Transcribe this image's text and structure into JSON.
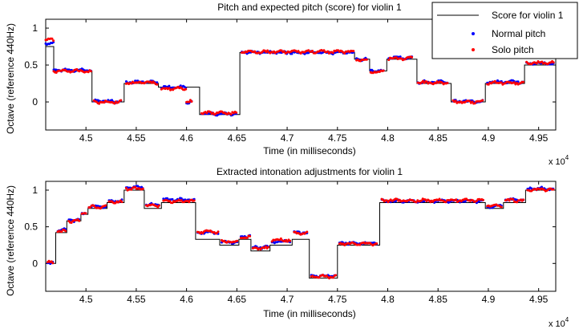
{
  "colors": {
    "score": "#000000",
    "normal": "#0000ff",
    "solo": "#ff0000",
    "axes": "#000000"
  },
  "chart_data": [
    {
      "type": "line",
      "title": "Pitch and expected pitch (score) for violin 1",
      "xlabel": "Time (in milliseconds)",
      "ylabel": "Octave (reference 440Hz)",
      "x_multiplier": "x 10^4",
      "x_multiplier_base": "x 10",
      "x_multiplier_exp": "4",
      "xlim": [
        4.46,
        4.967
      ],
      "ylim": [
        -0.38,
        1.12
      ],
      "xticks": [
        4.5,
        4.55,
        4.6,
        4.65,
        4.7,
        4.75,
        4.8,
        4.85,
        4.9,
        4.95
      ],
      "xtick_labels": [
        "4.5",
        "4.55",
        "4.6",
        "4.65",
        "4.7",
        "4.75",
        "4.8",
        "4.85",
        "4.9",
        "4.95"
      ],
      "yticks": [
        0,
        0.5,
        1
      ],
      "ytick_labels": [
        "0",
        "0.5",
        "1"
      ],
      "legend": {
        "placement": "top-right",
        "entries": [
          "Score for violin 1",
          "Normal pitch",
          "Solo pitch"
        ]
      },
      "series": [
        {
          "name": "Score for violin 1",
          "kind": "step",
          "segments": [
            [
              4.46,
              4.468,
              0.75
            ],
            [
              4.468,
              4.506,
              0.42
            ],
            [
              4.506,
              4.538,
              0.0
            ],
            [
              4.538,
              4.572,
              0.25
            ],
            [
              4.572,
              4.613,
              0.2
            ],
            [
              4.613,
              4.653,
              -0.17
            ],
            [
              4.653,
              4.767,
              0.67
            ],
            [
              4.767,
              4.782,
              0.58
            ],
            [
              4.782,
              4.799,
              0.42
            ],
            [
              4.799,
              4.829,
              0.58
            ],
            [
              4.829,
              4.863,
              0.25
            ],
            [
              4.863,
              4.897,
              0.0
            ],
            [
              4.897,
              4.936,
              0.25
            ],
            [
              4.936,
              4.965,
              0.5
            ]
          ]
        },
        {
          "name": "Normal pitch",
          "kind": "points",
          "segments": [
            [
              4.46,
              4.468,
              0.79
            ],
            [
              4.468,
              4.505,
              0.43
            ],
            [
              4.508,
              4.536,
              0.01
            ],
            [
              4.54,
              4.571,
              0.27
            ],
            [
              4.575,
              4.6,
              0.2
            ],
            [
              4.6,
              4.606,
              0.0
            ],
            [
              4.615,
              4.65,
              -0.16
            ],
            [
              4.655,
              4.766,
              0.67
            ],
            [
              4.769,
              4.78,
              0.58
            ],
            [
              4.783,
              4.797,
              0.42
            ],
            [
              4.801,
              4.825,
              0.6
            ],
            [
              4.83,
              4.86,
              0.27
            ],
            [
              4.865,
              4.895,
              0.01
            ],
            [
              4.899,
              4.935,
              0.27
            ],
            [
              4.938,
              4.965,
              0.52
            ]
          ]
        },
        {
          "name": "Solo pitch",
          "kind": "points",
          "segments": [
            [
              4.46,
              4.468,
              0.84
            ],
            [
              4.468,
              4.505,
              0.42
            ],
            [
              4.508,
              4.536,
              0.0
            ],
            [
              4.54,
              4.571,
              0.26
            ],
            [
              4.575,
              4.6,
              0.18
            ],
            [
              4.6,
              4.606,
              0.01
            ],
            [
              4.615,
              4.65,
              -0.15
            ],
            [
              4.655,
              4.766,
              0.68
            ],
            [
              4.769,
              4.78,
              0.57
            ],
            [
              4.783,
              4.797,
              0.41
            ],
            [
              4.801,
              4.825,
              0.59
            ],
            [
              4.83,
              4.86,
              0.26
            ],
            [
              4.865,
              4.895,
              0.0
            ],
            [
              4.899,
              4.935,
              0.26
            ],
            [
              4.938,
              4.965,
              0.53
            ]
          ]
        }
      ]
    },
    {
      "type": "line",
      "title": "Extracted intonation adjustments for violin 1",
      "xlabel": "Time (in milliseconds)",
      "ylabel": "Octave (reference 440Hz)",
      "x_multiplier": "x 10^4",
      "x_multiplier_base": "x 10",
      "x_multiplier_exp": "4",
      "xlim": [
        4.46,
        4.967
      ],
      "ylim": [
        -0.38,
        1.12
      ],
      "xticks": [
        4.5,
        4.55,
        4.6,
        4.65,
        4.7,
        4.75,
        4.8,
        4.85,
        4.9,
        4.95
      ],
      "xtick_labels": [
        "4.5",
        "4.55",
        "4.6",
        "4.65",
        "4.7",
        "4.75",
        "4.8",
        "4.85",
        "4.9",
        "4.95"
      ],
      "yticks": [
        0,
        0.5,
        1
      ],
      "ytick_labels": [
        "0",
        "0.5",
        "1"
      ],
      "series": [
        {
          "name": "Score for violin 1",
          "kind": "step",
          "segments": [
            [
              4.46,
              4.47,
              0.0
            ],
            [
              4.47,
              4.481,
              0.42
            ],
            [
              4.481,
              4.495,
              0.58
            ],
            [
              4.495,
              4.502,
              0.67
            ],
            [
              4.502,
              4.521,
              0.75
            ],
            [
              4.521,
              4.538,
              0.83
            ],
            [
              4.538,
              4.558,
              1.0
            ],
            [
              4.558,
              4.575,
              0.75
            ],
            [
              4.575,
              4.609,
              0.83
            ],
            [
              4.609,
              4.633,
              0.33
            ],
            [
              4.633,
              4.652,
              0.25
            ],
            [
              4.652,
              4.664,
              0.33
            ],
            [
              4.664,
              4.683,
              0.17
            ],
            [
              4.683,
              4.705,
              0.25
            ],
            [
              4.705,
              4.722,
              0.33
            ],
            [
              4.722,
              4.75,
              -0.2
            ],
            [
              4.75,
              4.792,
              0.25
            ],
            [
              4.792,
              4.897,
              0.83
            ],
            [
              4.897,
              4.915,
              0.75
            ],
            [
              4.915,
              4.937,
              0.83
            ],
            [
              4.937,
              4.965,
              1.0
            ]
          ]
        },
        {
          "name": "Normal pitch",
          "kind": "points",
          "segments": [
            [
              4.462,
              4.468,
              0.0
            ],
            [
              4.472,
              4.48,
              0.46
            ],
            [
              4.483,
              4.494,
              0.59
            ],
            [
              4.496,
              4.501,
              0.68
            ],
            [
              4.503,
              4.52,
              0.78
            ],
            [
              4.523,
              4.537,
              0.85
            ],
            [
              4.54,
              4.557,
              1.04
            ],
            [
              4.56,
              4.574,
              0.8
            ],
            [
              4.577,
              4.608,
              0.87
            ],
            [
              4.611,
              4.632,
              0.42
            ],
            [
              4.635,
              4.651,
              0.29
            ],
            [
              4.654,
              4.663,
              0.37
            ],
            [
              4.666,
              4.682,
              0.22
            ],
            [
              4.685,
              4.704,
              0.3
            ],
            [
              4.707,
              4.721,
              0.42
            ],
            [
              4.724,
              4.749,
              -0.17
            ],
            [
              4.752,
              4.79,
              0.28
            ],
            [
              4.794,
              4.895,
              0.85
            ],
            [
              4.899,
              4.914,
              0.78
            ],
            [
              4.917,
              4.936,
              0.87
            ],
            [
              4.939,
              4.965,
              1.02
            ]
          ]
        },
        {
          "name": "Solo pitch",
          "kind": "points",
          "segments": [
            [
              4.462,
              4.468,
              0.01
            ],
            [
              4.472,
              4.48,
              0.44
            ],
            [
              4.483,
              4.494,
              0.58
            ],
            [
              4.496,
              4.501,
              0.69
            ],
            [
              4.503,
              4.52,
              0.77
            ],
            [
              4.523,
              4.537,
              0.84
            ],
            [
              4.54,
              4.557,
              1.02
            ],
            [
              4.56,
              4.574,
              0.79
            ],
            [
              4.577,
              4.608,
              0.85
            ],
            [
              4.611,
              4.632,
              0.43
            ],
            [
              4.635,
              4.651,
              0.3
            ],
            [
              4.654,
              4.663,
              0.36
            ],
            [
              4.666,
              4.682,
              0.21
            ],
            [
              4.685,
              4.704,
              0.32
            ],
            [
              4.707,
              4.721,
              0.41
            ],
            [
              4.724,
              4.749,
              -0.18
            ],
            [
              4.752,
              4.79,
              0.27
            ],
            [
              4.794,
              4.895,
              0.86
            ],
            [
              4.899,
              4.914,
              0.79
            ],
            [
              4.917,
              4.936,
              0.86
            ],
            [
              4.939,
              4.965,
              1.01
            ]
          ]
        }
      ]
    }
  ]
}
